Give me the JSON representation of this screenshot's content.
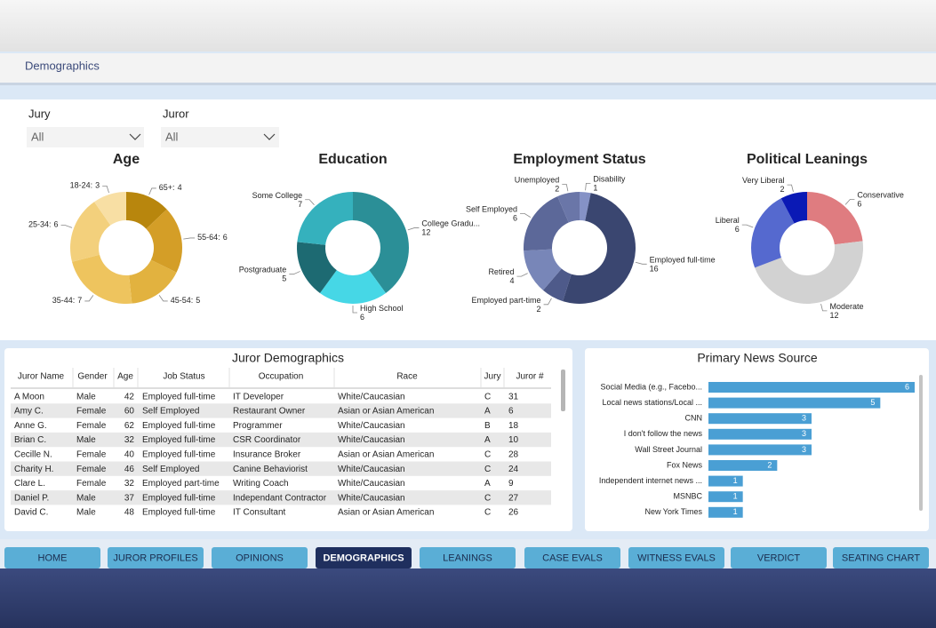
{
  "header": {
    "title": "Demographics"
  },
  "filters": [
    {
      "label": "Jury",
      "value": "All"
    },
    {
      "label": "Juror",
      "value": "All"
    }
  ],
  "chart_data": [
    {
      "type": "donut",
      "title": "Age",
      "categories": [
        "65+:",
        "55-64:",
        "45-54:",
        "35-44:",
        "25-34:",
        "18-24:"
      ],
      "values": [
        4,
        6,
        5,
        7,
        6,
        3
      ],
      "colors": [
        "#b8860d",
        "#d49e27",
        "#e2b23f",
        "#eec45e",
        "#f3d07c",
        "#f8dfa4"
      ]
    },
    {
      "type": "donut",
      "title": "Education",
      "categories": [
        "College Gradu...",
        "High School",
        "Postgraduate",
        "Some College"
      ],
      "values": [
        12,
        6,
        5,
        7
      ],
      "colors": [
        "#2b8f97",
        "#46d7e6",
        "#1d6a72",
        "#35b1bd"
      ]
    },
    {
      "type": "donut",
      "title": "Employment Status",
      "categories": [
        "Disability",
        "Employed full-time",
        "Employed part-time",
        "Retired",
        "Self Employed",
        "Unemployed"
      ],
      "values": [
        1,
        16,
        2,
        4,
        6,
        2
      ],
      "colors": [
        "#8592c6",
        "#3a4670",
        "#4e5a8a",
        "#7886b8",
        "#5c6899",
        "#6a76a8"
      ]
    },
    {
      "type": "donut",
      "title": "Political Leanings",
      "categories": [
        "Conservative",
        "Moderate",
        "Liberal",
        "Very Liberal"
      ],
      "values": [
        6,
        12,
        6,
        2
      ],
      "colors": [
        "#df7c80",
        "#d2d2d2",
        "#5569cf",
        "#0a19b5"
      ]
    },
    {
      "type": "bar",
      "orientation": "horizontal",
      "title": "Primary News Source",
      "categories": [
        "Social Media (e.g., Facebo...",
        "Local news stations/Local ...",
        "CNN",
        "I don't follow the news",
        "Wall Street Journal",
        "Fox News",
        "Independent internet news ...",
        "MSNBC",
        "New York Times"
      ],
      "values": [
        6,
        5,
        3,
        3,
        3,
        2,
        1,
        1,
        1
      ],
      "color": "#4a9fd4",
      "xlim": [
        0,
        6
      ]
    }
  ],
  "table": {
    "title": "Juror Demographics",
    "columns": [
      "Juror Name",
      "Gender",
      "Age",
      "Job Status",
      "Occupation",
      "Race",
      "Jury",
      "Juror #"
    ],
    "rows": [
      [
        "A Moon",
        "Male",
        42,
        "Employed full-time",
        "IT Developer",
        "White/Caucasian",
        "C",
        31
      ],
      [
        "Amy C.",
        "Female",
        60,
        "Self Employed",
        "Restaurant Owner",
        "Asian or Asian American",
        "A",
        6
      ],
      [
        "Anne G.",
        "Female",
        62,
        "Employed full-time",
        "Programmer",
        "White/Caucasian",
        "B",
        18
      ],
      [
        "Brian C.",
        "Male",
        32,
        "Employed full-time",
        "CSR Coordinator",
        "White/Caucasian",
        "A",
        10
      ],
      [
        "Cecille N.",
        "Female",
        40,
        "Employed full-time",
        "Insurance Broker",
        "Asian or Asian American",
        "C",
        28
      ],
      [
        "Charity H.",
        "Female",
        46,
        "Self Employed",
        "Canine Behaviorist",
        "White/Caucasian",
        "C",
        24
      ],
      [
        "Clare L.",
        "Female",
        32,
        "Employed part-time",
        "Writing Coach",
        "White/Caucasian",
        "A",
        9
      ],
      [
        "Daniel P.",
        "Male",
        37,
        "Employed full-time",
        "Independant Contractor",
        "White/Caucasian",
        "C",
        27
      ],
      [
        "David C.",
        "Male",
        48,
        "Employed full-time",
        "IT Consultant",
        "Asian or Asian American",
        "C",
        26
      ]
    ]
  },
  "nav": {
    "tabs": [
      "HOME",
      "JUROR PROFILES",
      "OPINIONS",
      "DEMOGRAPHICS",
      "LEANINGS",
      "CASE EVALS",
      "WITNESS EVALS",
      "VERDICT",
      "SEATING CHART"
    ],
    "active": 3
  }
}
